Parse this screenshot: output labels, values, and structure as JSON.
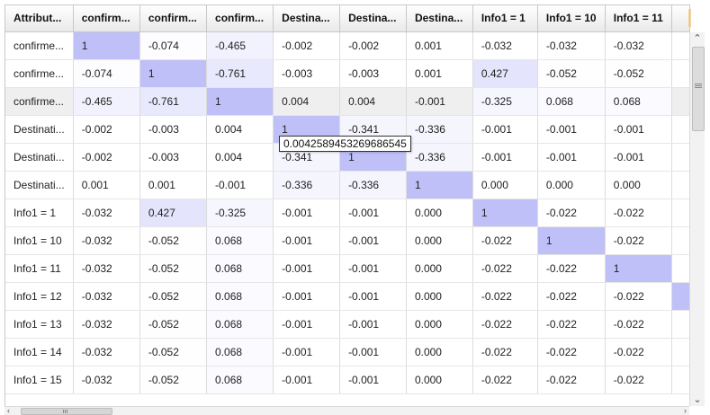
{
  "grid": {
    "headers": [
      "Attribut...",
      "confirm...",
      "confirm...",
      "confirm...",
      "Destina...",
      "Destina...",
      "Destina...",
      "Info1 = 1",
      "Info1 = 10",
      "Info1 = 11"
    ],
    "selected_row": 2,
    "highlight_color_max": "#c0c0f8",
    "rows": [
      {
        "label": "confirme...",
        "values": [
          "1",
          "-0.074",
          "-0.465",
          "-0.002",
          "-0.002",
          "0.001",
          "-0.032",
          "-0.032",
          "-0.032"
        ]
      },
      {
        "label": "confirme...",
        "values": [
          "-0.074",
          "1",
          "-0.761",
          "-0.003",
          "-0.003",
          "0.001",
          "0.427",
          "-0.052",
          "-0.052"
        ]
      },
      {
        "label": "confirme...",
        "values": [
          "-0.465",
          "-0.761",
          "1",
          "0.004",
          "0.004",
          "-0.001",
          "-0.325",
          "0.068",
          "0.068"
        ]
      },
      {
        "label": "Destinati...",
        "values": [
          "-0.002",
          "-0.003",
          "0.004",
          "1",
          "-0.341",
          "-0.336",
          "-0.001",
          "-0.001",
          "-0.001"
        ]
      },
      {
        "label": "Destinati...",
        "values": [
          "-0.002",
          "-0.003",
          "0.004",
          "-0.341",
          "1",
          "-0.336",
          "-0.001",
          "-0.001",
          "-0.001"
        ]
      },
      {
        "label": "Destinati...",
        "values": [
          "0.001",
          "0.001",
          "-0.001",
          "-0.336",
          "-0.336",
          "1",
          "0.000",
          "0.000",
          "0.000"
        ]
      },
      {
        "label": "Info1 = 1",
        "values": [
          "-0.032",
          "0.427",
          "-0.325",
          "-0.001",
          "-0.001",
          "0.000",
          "1",
          "-0.022",
          "-0.022"
        ]
      },
      {
        "label": "Info1 = 10",
        "values": [
          "-0.032",
          "-0.052",
          "0.068",
          "-0.001",
          "-0.001",
          "0.000",
          "-0.022",
          "1",
          "-0.022"
        ]
      },
      {
        "label": "Info1 = 11",
        "values": [
          "-0.032",
          "-0.052",
          "0.068",
          "-0.001",
          "-0.001",
          "0.000",
          "-0.022",
          "-0.022",
          "1"
        ]
      },
      {
        "label": "Info1 = 12",
        "values": [
          "-0.032",
          "-0.052",
          "0.068",
          "-0.001",
          "-0.001",
          "0.000",
          "-0.022",
          "-0.022",
          "-0.022"
        ]
      },
      {
        "label": "Info1 = 13",
        "values": [
          "-0.032",
          "-0.052",
          "0.068",
          "-0.001",
          "-0.001",
          "0.000",
          "-0.022",
          "-0.022",
          "-0.022"
        ]
      },
      {
        "label": "Info1 = 14",
        "values": [
          "-0.032",
          "-0.052",
          "0.068",
          "-0.001",
          "-0.001",
          "0.000",
          "-0.022",
          "-0.022",
          "-0.022"
        ]
      },
      {
        "label": "Info1 = 15",
        "values": [
          "-0.032",
          "-0.052",
          "0.068",
          "-0.001",
          "-0.001",
          "0.000",
          "-0.022",
          "-0.022",
          "-0.022"
        ]
      }
    ]
  },
  "tooltip": {
    "text": "0.0042589453269686545"
  },
  "scrollbars": {
    "up_icon": "chevron-up-icon",
    "down_icon": "chevron-down-icon",
    "left_icon": "chevron-left-icon",
    "right_icon": "chevron-right-icon"
  }
}
